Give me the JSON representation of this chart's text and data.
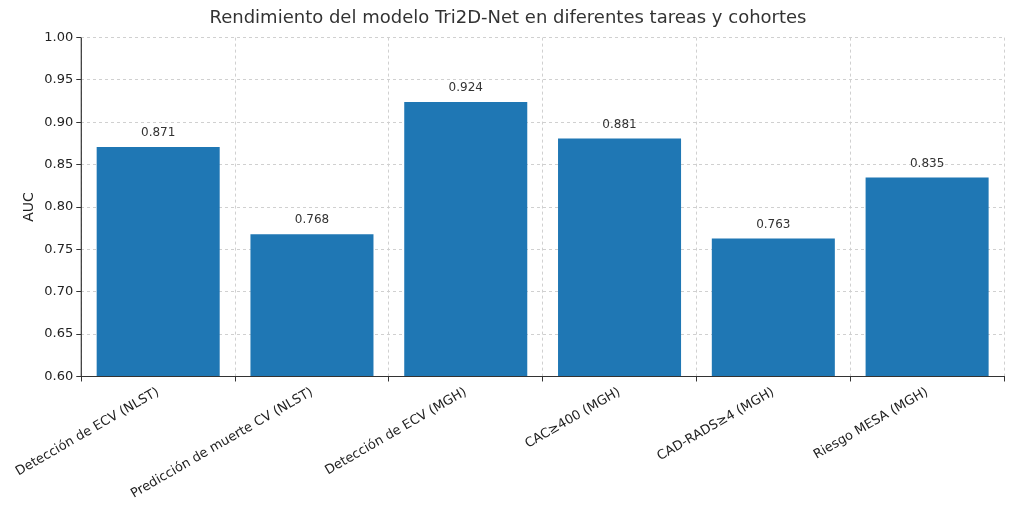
{
  "chart_data": {
    "type": "bar",
    "title": "Rendimiento del modelo Tri2D-Net en diferentes tareas y cohortes",
    "ylabel": "AUC",
    "categories": [
      "Detección de ECV (NLST)",
      "Predicción de muerte CV (NLST)",
      "Detección de ECV (MGH)",
      "CAC≥400 (MGH)",
      "CAD-RADS≥4 (MGH)",
      "Riesgo MESA (MGH)"
    ],
    "values": [
      0.871,
      0.768,
      0.924,
      0.881,
      0.763,
      0.835
    ],
    "color": "#1f77b4",
    "ylim": [
      0.6,
      1.0
    ],
    "yticks": [
      {
        "value": 0.6,
        "label": "0.60"
      },
      {
        "value": 0.65,
        "label": "0.65"
      },
      {
        "value": 0.7,
        "label": "0.70"
      },
      {
        "value": 0.75,
        "label": "0.75"
      },
      {
        "value": 0.8,
        "label": "0.80"
      },
      {
        "value": 0.85,
        "label": "0.85"
      },
      {
        "value": 0.9,
        "label": "0.90"
      },
      {
        "value": 0.95,
        "label": "0.95"
      },
      {
        "value": 1.0,
        "label": "1.00"
      }
    ],
    "grid": true,
    "data_labels": true
  }
}
